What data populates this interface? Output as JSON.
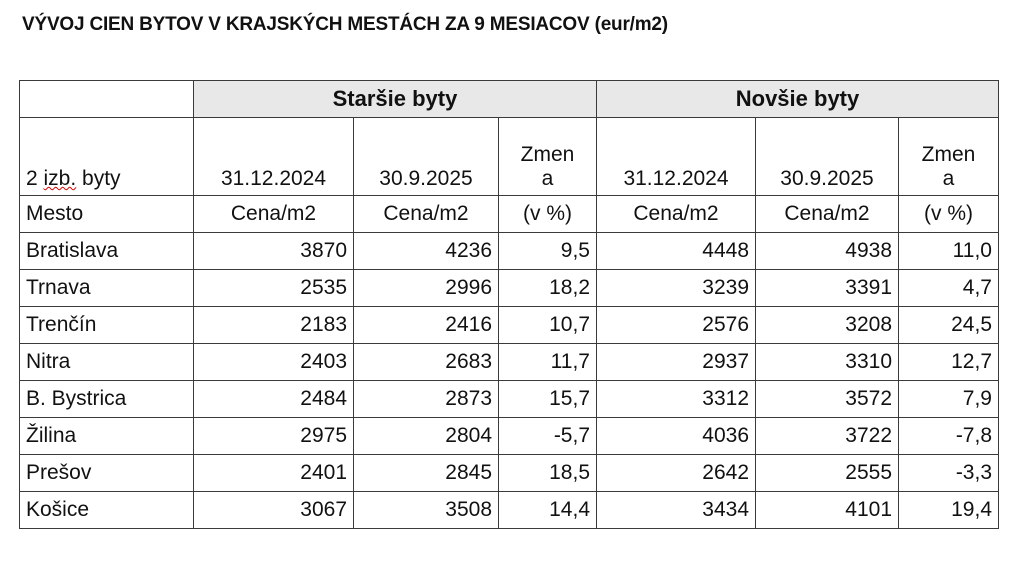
{
  "title": "VÝVOJ CIEN BYTOV V KRAJSKÝCH MESTÁCH ZA 9 MESIACOV (eur/m2)",
  "groups": [
    "Staršie byty",
    "Novšie byty"
  ],
  "header_row": {
    "label_pre": "2 ",
    "label_err": "izb.",
    "label_post": " byty",
    "date1": "31.12.2024",
    "date2": "30.9.2025",
    "change_l1": "Zmen",
    "change_l2": "a"
  },
  "unit_row": {
    "label": "Mesto",
    "unit": "Cena/m2",
    "pct": "(v %)"
  },
  "rows": [
    [
      "Bratislava",
      "3870",
      "4236",
      "9,5",
      "4448",
      "4938",
      "11,0"
    ],
    [
      "Trnava",
      "2535",
      "2996",
      "18,2",
      "3239",
      "3391",
      "4,7"
    ],
    [
      "Trenčín",
      "2183",
      "2416",
      "10,7",
      "2576",
      "3208",
      "24,5"
    ],
    [
      "Nitra",
      "2403",
      "2683",
      "11,7",
      "2937",
      "3310",
      "12,7"
    ],
    [
      "B. Bystrica",
      "2484",
      "2873",
      "15,7",
      "3312",
      "3572",
      "7,9"
    ],
    [
      "Žilina",
      "2975",
      "2804",
      "-5,7",
      "4036",
      "3722",
      "-7,8"
    ],
    [
      "Prešov",
      "2401",
      "2845",
      "18,5",
      "2642",
      "2555",
      "-3,3"
    ],
    [
      "Košice",
      "3067",
      "3508",
      "14,4",
      "3434",
      "4101",
      "19,4"
    ]
  ]
}
